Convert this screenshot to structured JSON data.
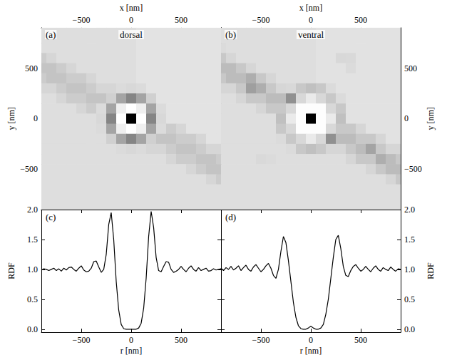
{
  "chart_data": [
    {
      "type": "heatmap",
      "panel": "(a)",
      "title": "dorsal",
      "xlabel": "x [nm]",
      "ylabel": "y [nm]",
      "xlim": [
        -900,
        900
      ],
      "ylim": [
        -900,
        900
      ],
      "xticks": [
        {
          "value": -500,
          "label": "−500"
        },
        0,
        500
      ],
      "yticks": [
        {
          "value": -500,
          "label": "−500"
        },
        0,
        500
      ],
      "x": [
        -900,
        -800,
        -700,
        -600,
        -500,
        -400,
        -300,
        -200,
        -100,
        0,
        100,
        200,
        300,
        400,
        500,
        600,
        700,
        800,
        900
      ],
      "y": [
        900,
        800,
        700,
        600,
        500,
        400,
        300,
        200,
        100,
        0,
        -100,
        -200,
        -300,
        -400,
        -500,
        -600,
        -700,
        -800,
        -900
      ],
      "cells": [
        [
          1,
          1,
          1,
          1,
          1,
          1,
          1,
          1,
          1,
          1,
          0.92,
          0.92,
          0.92,
          0.92,
          0.92,
          0.92,
          0.92,
          0.92,
          0.92
        ],
        [
          1,
          1,
          1,
          1,
          1,
          1,
          1,
          1,
          1,
          1,
          0.92,
          0.92,
          0.92,
          0.92,
          0.92,
          0.92,
          0.92,
          0.92,
          0.92
        ],
        [
          1,
          1,
          1,
          1,
          1,
          1,
          1,
          1,
          1,
          1,
          0.92,
          0.92,
          0.92,
          0.92,
          0.92,
          0.92,
          0.92,
          0.92,
          0.92
        ],
        [
          1.25,
          1.12,
          1,
          1,
          1,
          1,
          1,
          1,
          1,
          1,
          0.92,
          0.92,
          0.92,
          0.92,
          0.92,
          0.92,
          0.92,
          0.92,
          0.92
        ],
        [
          1.35,
          1.35,
          1.25,
          1.12,
          1,
          1,
          1,
          1,
          1,
          1,
          0.92,
          0.92,
          0.92,
          0.92,
          0.92,
          0.92,
          0.92,
          0.92,
          0.92
        ],
        [
          1.25,
          1.35,
          1.35,
          1.25,
          1.25,
          1.12,
          1,
          1,
          1,
          1,
          0.92,
          0.92,
          0.92,
          0.92,
          0.92,
          0.92,
          0.92,
          0.92,
          0.92
        ],
        [
          1.12,
          1.12,
          1.25,
          1.35,
          1.35,
          1.25,
          1.12,
          1.12,
          1.05,
          1.1,
          1.05,
          0.92,
          0.92,
          0.92,
          0.92,
          0.92,
          0.92,
          0.92,
          0.92
        ],
        [
          1,
          1,
          1.12,
          1.25,
          1.25,
          1.35,
          1.35,
          1.2,
          1.7,
          2.0,
          1.7,
          1.2,
          0.92,
          0.92,
          0.92,
          0.92,
          0.92,
          0.92,
          0.92
        ],
        [
          1,
          1,
          1,
          1,
          1.12,
          1.25,
          1.05,
          1.7,
          0.7,
          0.15,
          0.7,
          1.7,
          1.05,
          0.92,
          0.92,
          0.92,
          0.92,
          0.92,
          0.92
        ],
        [
          1,
          1,
          1,
          1,
          1,
          1,
          1.1,
          2.0,
          0.15,
          3.0,
          0.15,
          2.0,
          1.1,
          0.92,
          0.92,
          0.92,
          0.92,
          0.92,
          0.92
        ],
        [
          1,
          1,
          1,
          1,
          1,
          1,
          1.05,
          1.7,
          0.7,
          0.15,
          0.7,
          1.7,
          1.05,
          1.25,
          1.12,
          0.92,
          0.92,
          0.92,
          0.92
        ],
        [
          1,
          1,
          1,
          1,
          1,
          1,
          1,
          1.2,
          1.7,
          2.0,
          1.7,
          1.2,
          1.35,
          1.35,
          1.25,
          1.25,
          1.12,
          0.92,
          0.92
        ],
        [
          1,
          1,
          1,
          1,
          1,
          1,
          1,
          1,
          1.05,
          1.1,
          1.05,
          1.12,
          1.12,
          1.25,
          1.35,
          1.35,
          1.25,
          1.12,
          1.12
        ],
        [
          1,
          1,
          1,
          1,
          1,
          1,
          1,
          1,
          1,
          1,
          1,
          1,
          1,
          1.12,
          1.25,
          1.25,
          1.35,
          1.35,
          1.25
        ],
        [
          1,
          1,
          1,
          1,
          1,
          1,
          1,
          1,
          1,
          1,
          1,
          1,
          1,
          1,
          1,
          1.12,
          1.25,
          1.35,
          1.35
        ],
        [
          1,
          1,
          1,
          1,
          1,
          1,
          1,
          1,
          1,
          1,
          1,
          1,
          1,
          1,
          1,
          1,
          1,
          1.12,
          1.25
        ],
        [
          1,
          1,
          1,
          1,
          1,
          1,
          1,
          1,
          1,
          1,
          1,
          1,
          1,
          1,
          1,
          1,
          1,
          1,
          1
        ],
        [
          1,
          1,
          1,
          1,
          1,
          1,
          1,
          1,
          1,
          1,
          1,
          1,
          1,
          1,
          1,
          1,
          1,
          1,
          1
        ],
        [
          1,
          1,
          1,
          1,
          1,
          1,
          1,
          1,
          1,
          1,
          1,
          1,
          1,
          1,
          1,
          1,
          1,
          1,
          1
        ]
      ]
    },
    {
      "type": "heatmap",
      "panel": "(b)",
      "title": "ventral",
      "xlabel": "x [nm]",
      "ylabel": "y [nm]",
      "xlim": [
        -900,
        900
      ],
      "ylim": [
        -900,
        900
      ],
      "xticks": [
        {
          "value": -500,
          "label": "−500"
        },
        0,
        500
      ],
      "yticks": [
        {
          "value": -500,
          "label": "−500"
        },
        0,
        500
      ],
      "x": [
        -900,
        -800,
        -700,
        -600,
        -500,
        -400,
        -300,
        -200,
        -100,
        0,
        100,
        200,
        300,
        400,
        500,
        600,
        700,
        800,
        900
      ],
      "y": [
        900,
        800,
        700,
        600,
        500,
        400,
        300,
        200,
        100,
        0,
        -100,
        -200,
        -300,
        -400,
        -500,
        -600,
        -700,
        -800,
        -900
      ],
      "cells": [
        [
          1,
          1,
          1,
          1,
          1,
          1,
          1,
          1,
          1,
          1,
          0.95,
          0.95,
          0.95,
          0.95,
          0.95,
          0.95,
          0.95,
          0.95,
          0.95
        ],
        [
          1,
          1,
          1,
          1,
          1,
          1,
          1,
          1,
          1,
          1,
          0.95,
          0.95,
          0.95,
          0.95,
          0.95,
          0.95,
          0.95,
          0.95,
          0.95
        ],
        [
          1.05,
          1,
          1,
          1,
          1,
          1,
          1,
          1,
          1,
          1,
          0.95,
          0.95,
          0.95,
          0.95,
          0.95,
          0.95,
          0.95,
          0.95,
          0.95
        ],
        [
          1.3,
          1.12,
          1,
          1,
          1,
          1,
          1,
          1,
          1,
          1,
          0.95,
          0.95,
          1.1,
          1.08,
          0.95,
          0.95,
          0.95,
          0.95,
          0.95
        ],
        [
          1.45,
          1.45,
          1.3,
          1.12,
          1,
          1,
          1,
          1,
          1,
          1,
          0.95,
          0.95,
          0.95,
          1.05,
          0.95,
          0.95,
          0.95,
          0.95,
          0.95
        ],
        [
          1.3,
          1.45,
          1.45,
          1.6,
          1.3,
          1.12,
          1,
          1,
          1,
          1,
          0.95,
          0.95,
          0.95,
          0.95,
          0.95,
          0.95,
          0.95,
          0.95,
          0.95
        ],
        [
          1.12,
          1.12,
          1.3,
          1.75,
          1.6,
          1.3,
          1.12,
          1.1,
          1.3,
          1.4,
          1.3,
          1.05,
          0.95,
          0.95,
          0.95,
          0.95,
          0.95,
          0.95,
          0.95
        ],
        [
          1,
          1,
          1.12,
          1.3,
          1.3,
          1.45,
          1.45,
          1.9,
          1.1,
          0.8,
          1.1,
          1.3,
          1.05,
          0.95,
          0.95,
          0.95,
          0.95,
          0.95,
          0.95
        ],
        [
          1,
          1,
          1,
          1,
          1.12,
          1.3,
          1.3,
          1.1,
          0.3,
          0.3,
          0.3,
          1.1,
          1.3,
          0.95,
          0.95,
          0.95,
          0.95,
          0.95,
          0.95
        ],
        [
          1,
          1,
          1,
          1,
          1,
          1,
          1.4,
          0.8,
          0.3,
          3.0,
          0.3,
          0.8,
          1.4,
          0.95,
          0.95,
          0.95,
          0.95,
          0.95,
          0.95
        ],
        [
          1,
          1,
          1,
          1,
          1,
          1,
          1.3,
          1.1,
          0.3,
          0.3,
          0.3,
          1.1,
          1.3,
          1.3,
          1.12,
          0.95,
          0.95,
          0.95,
          0.95
        ],
        [
          1,
          1,
          1,
          1,
          1,
          1,
          1.05,
          1.3,
          1.1,
          0.8,
          1.1,
          1.9,
          1.45,
          1.45,
          1.3,
          1.3,
          1.12,
          0.95,
          0.95
        ],
        [
          1,
          1,
          1,
          1,
          1,
          1,
          1,
          1.05,
          1.3,
          1.4,
          1.3,
          1.12,
          1.12,
          1.3,
          1.45,
          1.7,
          1.3,
          1.12,
          1.12
        ],
        [
          1,
          1,
          1,
          1,
          1.08,
          1.05,
          1,
          1,
          1,
          1,
          1,
          1,
          1,
          1.12,
          1.3,
          1.3,
          1.6,
          1.45,
          1.3
        ],
        [
          1,
          1,
          1,
          1,
          1,
          1,
          1,
          1,
          1,
          1,
          1,
          1,
          1,
          1,
          1,
          1.12,
          1.3,
          1.45,
          1.45
        ],
        [
          1,
          1,
          1,
          1,
          1,
          1,
          1,
          1,
          1,
          1,
          1,
          1,
          1,
          1,
          1,
          1,
          1,
          1.12,
          1.3
        ],
        [
          1,
          1,
          1,
          1,
          1,
          1,
          1,
          1,
          1,
          1,
          1,
          1,
          1,
          1,
          1,
          1,
          1,
          1,
          1
        ],
        [
          1,
          1,
          1,
          1,
          1,
          1,
          1,
          1,
          1,
          1,
          1,
          1,
          1,
          1,
          1,
          1,
          1,
          1,
          1
        ],
        [
          1,
          1,
          1,
          1,
          1,
          1,
          1,
          1,
          1,
          1,
          1,
          1,
          1,
          1,
          1,
          1,
          1,
          1,
          1
        ]
      ]
    },
    {
      "type": "line",
      "panel": "(c)",
      "xlabel": "r [nm]",
      "ylabel": "RDF",
      "color": "#000000",
      "xlim": [
        -900,
        900
      ],
      "ylim": [
        -0.05,
        2
      ],
      "xticks": [
        {
          "value": -500,
          "label": "−500"
        },
        0,
        500
      ],
      "yticks": [
        {
          "value": 0,
          "label": "0.0"
        },
        0.5,
        {
          "value": 1,
          "label": "1.0"
        },
        1.5,
        {
          "value": 2,
          "label": "2.0"
        }
      ],
      "x": [
        -900,
        -875,
        -850,
        -825,
        -800,
        -775,
        -750,
        -725,
        -700,
        -675,
        -650,
        -625,
        -600,
        -575,
        -550,
        -525,
        -500,
        -475,
        -450,
        -425,
        -400,
        -375,
        -350,
        -325,
        -300,
        -275,
        -250,
        -225,
        -200,
        -175,
        -150,
        -125,
        -100,
        -75,
        -50,
        -25,
        0,
        25,
        50,
        75,
        100,
        125,
        150,
        175,
        200,
        225,
        250,
        275,
        300,
        325,
        350,
        375,
        400,
        425,
        450,
        475,
        500,
        525,
        550,
        575,
        600,
        625,
        650,
        675,
        700,
        725,
        750,
        775,
        800,
        825,
        850,
        875,
        900
      ],
      "values": [
        0.99,
        1.01,
        1.0,
        0.98,
        1.0,
        1.02,
        0.98,
        1.01,
        0.97,
        1.02,
        0.99,
        1.03,
        1.04,
        1.0,
        0.97,
        1.02,
        1.06,
        0.99,
        0.96,
        0.97,
        1.02,
        1.13,
        1.14,
        1.04,
        0.95,
        1.0,
        1.25,
        1.75,
        1.95,
        1.5,
        0.8,
        0.32,
        0.08,
        0.01,
        0.0,
        0.0,
        0.0,
        0.0,
        0.0,
        0.02,
        0.1,
        0.35,
        0.85,
        1.55,
        1.97,
        1.7,
        1.2,
        0.98,
        0.96,
        1.05,
        1.13,
        1.12,
        1.0,
        0.95,
        0.97,
        1.0,
        1.05,
        1.0,
        0.96,
        1.02,
        1.06,
        1.0,
        0.97,
        1.03,
        0.98,
        1.0,
        1.02,
        0.97,
        0.98,
        1.01,
        0.99,
        1.0,
        1.01
      ]
    },
    {
      "type": "line",
      "panel": "(d)",
      "xlabel": "r [nm]",
      "ylabel": "RDF",
      "color": "#000000",
      "xlim": [
        -900,
        900
      ],
      "ylim": [
        -0.05,
        2
      ],
      "xticks": [
        {
          "value": -500,
          "label": "−500"
        },
        0,
        500
      ],
      "yticks": [
        {
          "value": 0,
          "label": "0.0"
        },
        0.5,
        {
          "value": 1,
          "label": "1.0"
        },
        1.5,
        {
          "value": 2,
          "label": "2.0"
        }
      ],
      "x": [
        -900,
        -875,
        -850,
        -825,
        -800,
        -775,
        -750,
        -725,
        -700,
        -675,
        -650,
        -625,
        -600,
        -575,
        -550,
        -525,
        -500,
        -475,
        -450,
        -425,
        -400,
        -375,
        -350,
        -325,
        -300,
        -275,
        -250,
        -225,
        -200,
        -175,
        -150,
        -125,
        -100,
        -75,
        -50,
        -25,
        0,
        25,
        50,
        75,
        100,
        125,
        150,
        175,
        200,
        225,
        250,
        275,
        300,
        325,
        350,
        375,
        400,
        425,
        450,
        475,
        500,
        525,
        550,
        575,
        600,
        625,
        650,
        675,
        700,
        725,
        750,
        775,
        800,
        825,
        850,
        875,
        900
      ],
      "values": [
        1.02,
        0.98,
        1.03,
        1.0,
        1.05,
        0.99,
        1.02,
        1.06,
        0.98,
        1.03,
        1.07,
        1.0,
        0.97,
        1.04,
        1.08,
        1.02,
        0.96,
        1.0,
        1.06,
        1.1,
        1.02,
        0.9,
        0.85,
        1.0,
        1.3,
        1.55,
        1.45,
        1.15,
        0.8,
        0.45,
        0.2,
        0.06,
        0.01,
        0.0,
        0.0,
        0.02,
        0.05,
        0.02,
        0.0,
        0.0,
        0.02,
        0.08,
        0.25,
        0.5,
        0.85,
        1.2,
        1.5,
        1.57,
        1.35,
        1.05,
        0.9,
        0.88,
        0.98,
        1.05,
        1.08,
        1.02,
        0.97,
        1.0,
        1.05,
        1.0,
        0.96,
        1.02,
        1.06,
        1.0,
        0.97,
        1.03,
        1.0,
        0.98,
        1.04,
        1.0,
        0.97,
        1.01,
        1.0
      ]
    }
  ]
}
